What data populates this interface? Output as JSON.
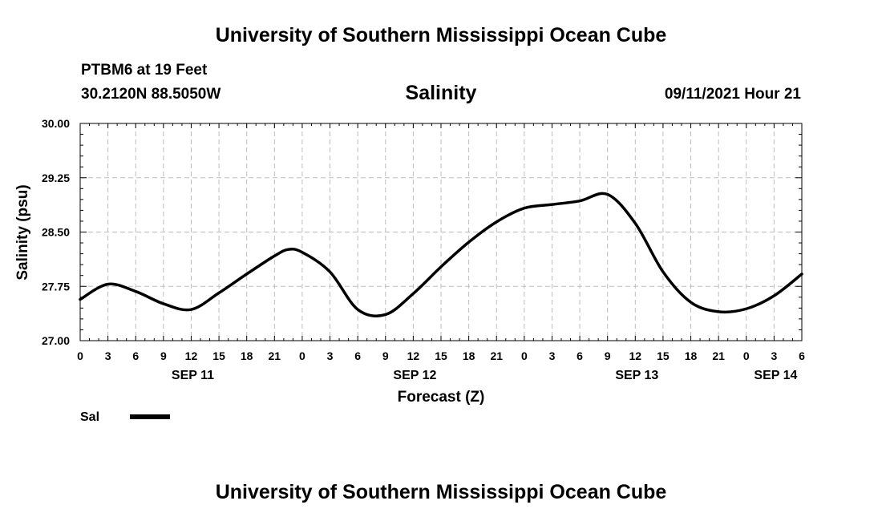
{
  "header": {
    "top_title": "University of Southern Mississippi Ocean Cube",
    "station": "PTBM6 at 19 Feet",
    "coords": "30.2120N  88.5050W",
    "timestamp": "09/11/2021 Hour 21",
    "bottom_title": "University of Southern Mississippi Ocean Cube"
  },
  "chart_data": {
    "type": "line",
    "title": "Salinity",
    "xlabel": "Forecast (Z)",
    "ylabel": "Salinity (psu)",
    "ylim": [
      27.0,
      30.0
    ],
    "yticks": [
      "27.00",
      "27.75",
      "28.50",
      "29.25",
      "30.00"
    ],
    "xlim_hours": [
      0,
      78
    ],
    "xtick_labels": [
      "0",
      "3",
      "6",
      "9",
      "12",
      "15",
      "18",
      "21",
      "0",
      "3",
      "6",
      "9",
      "12",
      "15",
      "18",
      "21",
      "0",
      "3",
      "6",
      "9",
      "12",
      "15",
      "18",
      "21",
      "0",
      "3",
      "6"
    ],
    "day_labels": [
      {
        "label": "SEP 11",
        "hour": 12
      },
      {
        "label": "SEP 12",
        "hour": 36
      },
      {
        "label": "SEP 13",
        "hour": 60
      },
      {
        "label": "SEP 14",
        "hour": 75
      }
    ],
    "grid": true,
    "legend": {
      "position": "bottom-left",
      "entries": [
        {
          "name": "Sal",
          "color": "#000000"
        }
      ]
    },
    "series": [
      {
        "name": "Sal",
        "color": "#000000",
        "x": [
          0,
          3,
          6,
          9,
          12,
          15,
          18,
          21,
          22.5,
          24,
          27,
          30,
          33,
          36,
          39,
          42,
          45,
          48,
          51,
          54,
          57,
          60,
          63,
          66,
          69,
          72,
          75,
          78
        ],
        "y": [
          27.57,
          27.78,
          27.68,
          27.51,
          27.43,
          27.66,
          27.92,
          28.17,
          28.26,
          28.22,
          27.95,
          27.43,
          27.36,
          27.65,
          28.02,
          28.36,
          28.64,
          28.83,
          28.88,
          28.93,
          29.02,
          28.62,
          27.95,
          27.53,
          27.4,
          27.44,
          27.62,
          27.92
        ]
      }
    ]
  }
}
